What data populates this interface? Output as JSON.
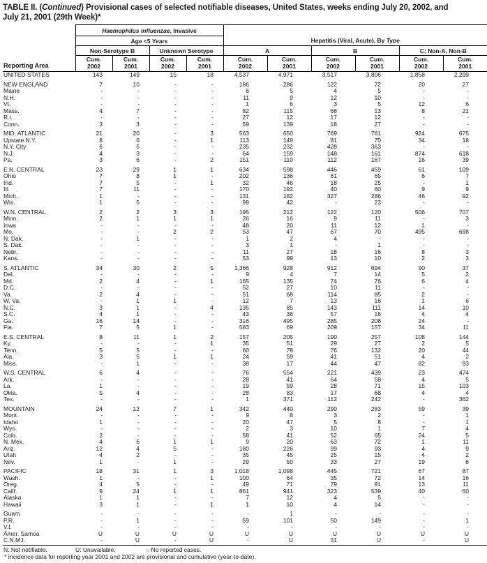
{
  "title": {
    "prefix": "TABLE II. (",
    "continued": "Continued",
    "rest": ") Provisional cases of selected notifiable diseases, United States, weeks ending July 20, 2002, and July 21, 2001 (29th Week)*"
  },
  "header": {
    "reporting_area": "Reporting Area",
    "haemophilus": {
      "italic": "Haemophilus influenzae",
      "rest": ", Invasive",
      "sub": "Age <5 Years",
      "groups": [
        "Non-Serotype B",
        "Unknown Serotype"
      ]
    },
    "hepatitis": {
      "title": "Hepatitis (Viral, Acute), By Type",
      "groups": [
        "A",
        "B",
        "C; Non-A, Non-B"
      ]
    },
    "cum": "Cum.",
    "years": [
      "2002",
      "2001",
      "2002",
      "2001",
      "2002",
      "2001",
      "2002",
      "2001",
      "2002",
      "2001"
    ]
  },
  "rows": [
    {
      "area": "UNITED STATES",
      "gap": false,
      "v": [
        "143",
        "149",
        "15",
        "18",
        "4,537",
        "4,971",
        "3,517",
        "3,806",
        "1,858",
        "2,299"
      ]
    },
    {
      "area": "NEW ENGLAND",
      "gap": true,
      "v": [
        "7",
        "10",
        "-",
        "-",
        "186",
        "286",
        "122",
        "72",
        "20",
        "27"
      ]
    },
    {
      "area": "Maine",
      "gap": false,
      "v": [
        "-",
        "-",
        "-",
        "-",
        "6",
        "5",
        "4",
        "5",
        "-",
        "-"
      ]
    },
    {
      "area": "N.H.",
      "gap": false,
      "v": [
        "-",
        "-",
        "-",
        "-",
        "11",
        "9",
        "12",
        "10",
        "-",
        "-"
      ]
    },
    {
      "area": "Vt.",
      "gap": false,
      "v": [
        "-",
        "-",
        "-",
        "-",
        "1",
        "6",
        "3",
        "5",
        "12",
        "6"
      ]
    },
    {
      "area": "Mass.",
      "gap": false,
      "v": [
        "4",
        "7",
        "-",
        "-",
        "82",
        "115",
        "68",
        "13",
        "8",
        "21"
      ]
    },
    {
      "area": "R.I.",
      "gap": false,
      "v": [
        "-",
        "-",
        "-",
        "-",
        "27",
        "12",
        "17",
        "12",
        "-",
        "-"
      ]
    },
    {
      "area": "Conn.",
      "gap": false,
      "v": [
        "3",
        "3",
        "-",
        "-",
        "59",
        "139",
        "18",
        "27",
        "-",
        "-"
      ]
    },
    {
      "area": "MID. ATLANTIC",
      "gap": true,
      "v": [
        "21",
        "20",
        "-",
        "3",
        "563",
        "650",
        "769",
        "761",
        "924",
        "675"
      ]
    },
    {
      "area": "Upstate N.Y.",
      "gap": false,
      "v": [
        "8",
        "6",
        "-",
        "1",
        "113",
        "149",
        "81",
        "70",
        "34",
        "18"
      ]
    },
    {
      "area": "N.Y. City",
      "gap": false,
      "v": [
        "6",
        "5",
        "-",
        "-",
        "235",
        "232",
        "428",
        "363",
        "-",
        "-"
      ]
    },
    {
      "area": "N.J.",
      "gap": false,
      "v": [
        "4",
        "3",
        "-",
        "-",
        "64",
        "159",
        "148",
        "161",
        "874",
        "618"
      ]
    },
    {
      "area": "Pa.",
      "gap": false,
      "v": [
        "3",
        "6",
        "-",
        "2",
        "151",
        "110",
        "112",
        "167",
        "16",
        "39"
      ]
    },
    {
      "area": "E.N. CENTRAL",
      "gap": true,
      "v": [
        "23",
        "29",
        "1",
        "1",
        "634",
        "598",
        "446",
        "459",
        "61",
        "109"
      ]
    },
    {
      "area": "Ohio",
      "gap": false,
      "v": [
        "7",
        "8",
        "1",
        "-",
        "202",
        "136",
        "61",
        "65",
        "6",
        "7"
      ]
    },
    {
      "area": "Ind.",
      "gap": false,
      "v": [
        "7",
        "5",
        "-",
        "1",
        "32",
        "46",
        "18",
        "25",
        "-",
        "1"
      ]
    },
    {
      "area": "Ill.",
      "gap": false,
      "v": [
        "7",
        "11",
        "-",
        "-",
        "170",
        "192",
        "40",
        "60",
        "9",
        "9"
      ]
    },
    {
      "area": "Mich.",
      "gap": false,
      "v": [
        "1",
        "-",
        "-",
        "-",
        "131",
        "182",
        "327",
        "286",
        "46",
        "92"
      ]
    },
    {
      "area": "Wis.",
      "gap": false,
      "v": [
        "1",
        "5",
        "-",
        "-",
        "99",
        "42",
        "-",
        "23",
        "-",
        "-"
      ]
    },
    {
      "area": "W.N. CENTRAL",
      "gap": true,
      "v": [
        "2",
        "2",
        "3",
        "3",
        "195",
        "212",
        "122",
        "120",
        "506",
        "707"
      ]
    },
    {
      "area": "Minn.",
      "gap": false,
      "v": [
        "2",
        "1",
        "1",
        "1",
        "26",
        "16",
        "9",
        "11",
        "-",
        "3"
      ]
    },
    {
      "area": "Iowa",
      "gap": false,
      "v": [
        "-",
        "-",
        "-",
        "-",
        "48",
        "20",
        "11",
        "12",
        "1",
        "-"
      ]
    },
    {
      "area": "Mo.",
      "gap": false,
      "v": [
        "-",
        "-",
        "2",
        "2",
        "53",
        "47",
        "67",
        "70",
        "495",
        "698"
      ]
    },
    {
      "area": "N. Dak.",
      "gap": false,
      "v": [
        "-",
        "1",
        "-",
        "-",
        "1",
        "2",
        "4",
        "-",
        "-",
        "-"
      ]
    },
    {
      "area": "S. Dak.",
      "gap": false,
      "v": [
        "-",
        "-",
        "-",
        "-",
        "3",
        "1",
        "-",
        "1",
        "-",
        "-"
      ]
    },
    {
      "area": "Nebr.",
      "gap": false,
      "v": [
        "-",
        "-",
        "-",
        "-",
        "11",
        "27",
        "18",
        "16",
        "8",
        "3"
      ]
    },
    {
      "area": "Kans.",
      "gap": false,
      "v": [
        "-",
        "-",
        "-",
        "-",
        "53",
        "99",
        "13",
        "10",
        "2",
        "3"
      ]
    },
    {
      "area": "S. ATLANTIC",
      "gap": true,
      "v": [
        "34",
        "30",
        "2",
        "5",
        "1,366",
        "928",
        "912",
        "694",
        "90",
        "37"
      ]
    },
    {
      "area": "Del.",
      "gap": false,
      "v": [
        "-",
        "-",
        "-",
        "-",
        "9",
        "4",
        "7",
        "14",
        "5",
        "2"
      ]
    },
    {
      "area": "Md.",
      "gap": false,
      "v": [
        "2",
        "4",
        "-",
        "1",
        "165",
        "135",
        "74",
        "76",
        "6",
        "4"
      ]
    },
    {
      "area": "D.C.",
      "gap": false,
      "v": [
        "-",
        "-",
        "-",
        "-",
        "52",
        "27",
        "10",
        "11",
        "-",
        "-"
      ]
    },
    {
      "area": "Va.",
      "gap": false,
      "v": [
        "2",
        "4",
        "-",
        "-",
        "51",
        "68",
        "114",
        "85",
        "2",
        "-"
      ]
    },
    {
      "area": "W. Va.",
      "gap": false,
      "v": [
        "-",
        "1",
        "1",
        "-",
        "12",
        "7",
        "13",
        "16",
        "1",
        "6"
      ]
    },
    {
      "area": "N.C.",
      "gap": false,
      "v": [
        "3",
        "1",
        "-",
        "4",
        "135",
        "85",
        "143",
        "111",
        "14",
        "10"
      ]
    },
    {
      "area": "S.C.",
      "gap": false,
      "v": [
        "4",
        "1",
        "-",
        "-",
        "43",
        "38",
        "57",
        "16",
        "4",
        "4"
      ]
    },
    {
      "area": "Ga.",
      "gap": false,
      "v": [
        "16",
        "14",
        "-",
        "-",
        "316",
        "495",
        "285",
        "208",
        "24",
        "-"
      ]
    },
    {
      "area": "Fla.",
      "gap": false,
      "v": [
        "7",
        "5",
        "1",
        "-",
        "583",
        "69",
        "209",
        "157",
        "34",
        "11"
      ]
    },
    {
      "area": "E.S. CENTRAL",
      "gap": true,
      "v": [
        "8",
        "11",
        "1",
        "2",
        "157",
        "205",
        "190",
        "257",
        "108",
        "144"
      ]
    },
    {
      "area": "Ky.",
      "gap": false,
      "v": [
        "-",
        "-",
        "-",
        "1",
        "35",
        "51",
        "29",
        "27",
        "2",
        "5"
      ]
    },
    {
      "area": "Tenn.",
      "gap": false,
      "v": [
        "5",
        "5",
        "-",
        "-",
        "60",
        "78",
        "76",
        "132",
        "20",
        "44"
      ]
    },
    {
      "area": "Ala.",
      "gap": false,
      "v": [
        "3",
        "5",
        "1",
        "1",
        "24",
        "59",
        "41",
        "51",
        "4",
        "2"
      ]
    },
    {
      "area": "Miss.",
      "gap": false,
      "v": [
        "-",
        "1",
        "-",
        "-",
        "38",
        "17",
        "44",
        "47",
        "82",
        "93"
      ]
    },
    {
      "area": "W.S. CENTRAL",
      "gap": true,
      "v": [
        "6",
        "4",
        "-",
        "-",
        "76",
        "554",
        "221",
        "439",
        "23",
        "474"
      ]
    },
    {
      "area": "Ark.",
      "gap": false,
      "v": [
        "-",
        "-",
        "-",
        "-",
        "28",
        "41",
        "64",
        "58",
        "4",
        "5"
      ]
    },
    {
      "area": "La.",
      "gap": false,
      "v": [
        "1",
        "-",
        "-",
        "-",
        "19",
        "59",
        "28",
        "71",
        "15",
        "103"
      ]
    },
    {
      "area": "Okla.",
      "gap": false,
      "v": [
        "5",
        "4",
        "-",
        "-",
        "28",
        "83",
        "17",
        "68",
        "4",
        "4"
      ]
    },
    {
      "area": "Tex.",
      "gap": false,
      "v": [
        "-",
        "-",
        "-",
        "-",
        "1",
        "371",
        "112",
        "242",
        "-",
        "362"
      ]
    },
    {
      "area": "MOUNTAIN",
      "gap": true,
      "v": [
        "24",
        "12",
        "7",
        "1",
        "342",
        "440",
        "290",
        "283",
        "59",
        "39"
      ]
    },
    {
      "area": "Mont.",
      "gap": false,
      "v": [
        "-",
        "-",
        "-",
        "-",
        "9",
        "8",
        "3",
        "2",
        "-",
        "1"
      ]
    },
    {
      "area": "Idaho",
      "gap": false,
      "v": [
        "1",
        "-",
        "-",
        "-",
        "20",
        "47",
        "5",
        "8",
        "-",
        "1"
      ]
    },
    {
      "area": "Wyo.",
      "gap": false,
      "v": [
        "-",
        "-",
        "-",
        "-",
        "2",
        "3",
        "10",
        "1",
        "7",
        "4"
      ]
    },
    {
      "area": "Colo.",
      "gap": false,
      "v": [
        "2",
        "-",
        "-",
        "-",
        "58",
        "41",
        "52",
        "65",
        "24",
        "5"
      ]
    },
    {
      "area": "N. Mex.",
      "gap": false,
      "v": [
        "4",
        "6",
        "1",
        "1",
        "9",
        "20",
        "63",
        "72",
        "1",
        "11"
      ]
    },
    {
      "area": "Ariz.",
      "gap": false,
      "v": [
        "12",
        "4",
        "5",
        "-",
        "180",
        "226",
        "99",
        "93",
        "4",
        "9"
      ]
    },
    {
      "area": "Utah",
      "gap": false,
      "v": [
        "4",
        "2",
        "-",
        "-",
        "35",
        "45",
        "25",
        "15",
        "4",
        "2"
      ]
    },
    {
      "area": "Nev.",
      "gap": false,
      "v": [
        "1",
        "-",
        "1",
        "-",
        "29",
        "50",
        "33",
        "27",
        "19",
        "6"
      ]
    },
    {
      "area": "PACIFIC",
      "gap": true,
      "v": [
        "18",
        "31",
        "1",
        "3",
        "1,018",
        "1,098",
        "445",
        "721",
        "67",
        "87"
      ]
    },
    {
      "area": "Wash.",
      "gap": false,
      "v": [
        "1",
        "-",
        "-",
        "1",
        "100",
        "64",
        "35",
        "72",
        "14",
        "16"
      ]
    },
    {
      "area": "Oreg.",
      "gap": false,
      "v": [
        "4",
        "5",
        "-",
        "-",
        "49",
        "71",
        "79",
        "91",
        "13",
        "11"
      ]
    },
    {
      "area": "Calif.",
      "gap": false,
      "v": [
        "9",
        "24",
        "1",
        "1",
        "861",
        "941",
        "323",
        "539",
        "40",
        "60"
      ]
    },
    {
      "area": "Alaska",
      "gap": false,
      "v": [
        "1",
        "1",
        "-",
        "-",
        "7",
        "12",
        "4",
        "5",
        "-",
        "-"
      ]
    },
    {
      "area": "Hawaii",
      "gap": false,
      "v": [
        "3",
        "1",
        "-",
        "1",
        "1",
        "10",
        "4",
        "14",
        "-",
        "-"
      ]
    },
    {
      "area": "Guam",
      "gap": true,
      "v": [
        "-",
        "-",
        "-",
        "-",
        "-",
        "1",
        "-",
        "-",
        "-",
        "-"
      ]
    },
    {
      "area": "P.R.",
      "gap": false,
      "v": [
        "-",
        "1",
        "-",
        "-",
        "59",
        "101",
        "50",
        "149",
        "-",
        "1"
      ]
    },
    {
      "area": "V.I.",
      "gap": false,
      "v": [
        "-",
        "-",
        "-",
        "-",
        "-",
        "-",
        "-",
        "-",
        "-",
        "-"
      ]
    },
    {
      "area": "Amer. Samoa",
      "gap": false,
      "v": [
        "U",
        "U",
        "U",
        "U",
        "U",
        "U",
        "U",
        "U",
        "U",
        "U"
      ]
    },
    {
      "area": "C.N.M.I.",
      "gap": false,
      "v": [
        "-",
        "U",
        "-",
        "U",
        "-",
        "U",
        "31",
        "U",
        "-",
        "U"
      ]
    }
  ],
  "footnotes": {
    "legend": [
      "N: Not notifiable.",
      "U: Unavailable.",
      "-: No reported cases."
    ],
    "note": "* Incidence data for reporting year 2001 and 2002 are provisional and cumulative (year-to-date)."
  }
}
